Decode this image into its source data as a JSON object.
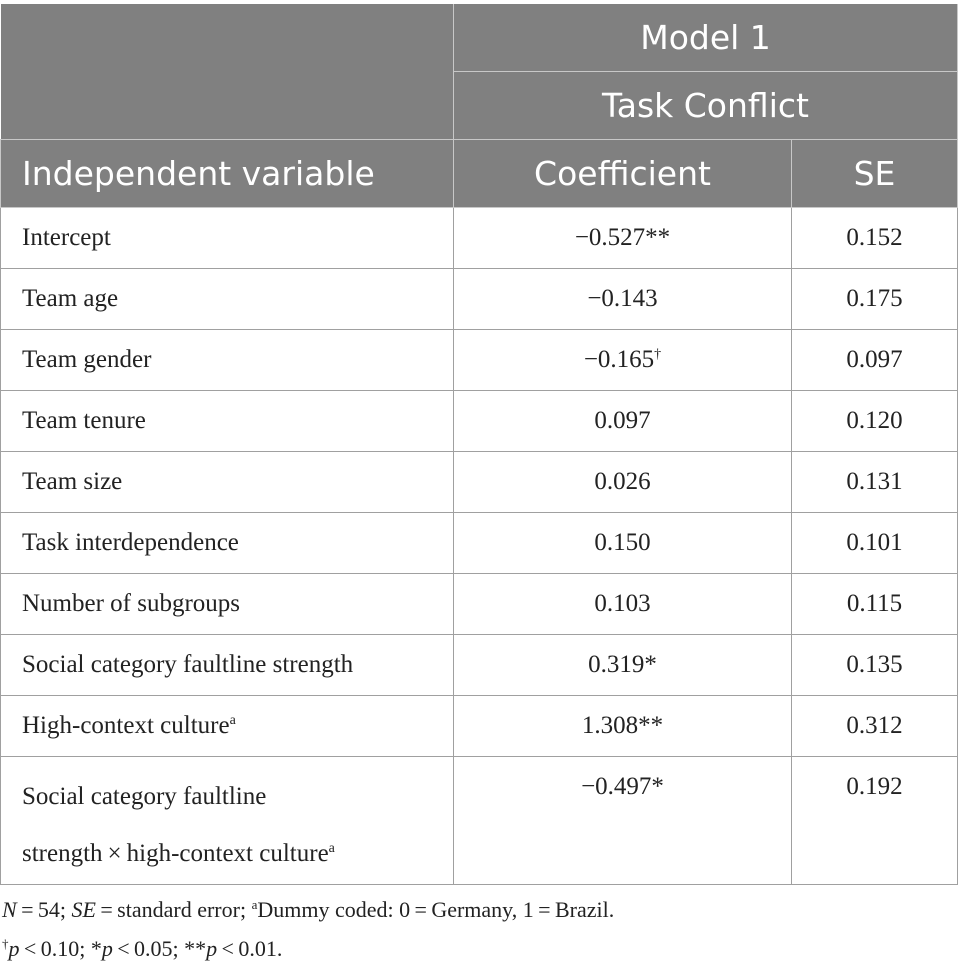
{
  "header": {
    "model": "Model 1",
    "dependent": "Task Conflict",
    "col_variable": "Independent variable",
    "col_coefficient": "Coefficient",
    "col_se": "SE"
  },
  "rows": [
    {
      "variable": "Intercept",
      "sup": "",
      "coef": "−0.527",
      "coef_sig": "**",
      "se": "0.152"
    },
    {
      "variable": "Team age",
      "sup": "",
      "coef": "−0.143",
      "coef_sig": "",
      "se": "0.175"
    },
    {
      "variable": "Team gender",
      "sup": "",
      "coef": "−0.165",
      "coef_sig": "†",
      "se": "0.097"
    },
    {
      "variable": "Team tenure",
      "sup": "",
      "coef": "0.097",
      "coef_sig": "",
      "se": "0.120"
    },
    {
      "variable": "Team size",
      "sup": "",
      "coef": "0.026",
      "coef_sig": "",
      "se": "0.131"
    },
    {
      "variable": "Task interdependence",
      "sup": "",
      "coef": "0.150",
      "coef_sig": "",
      "se": "0.101"
    },
    {
      "variable": "Number of subgroups",
      "sup": "",
      "coef": "0.103",
      "coef_sig": "",
      "se": "0.115"
    },
    {
      "variable": "Social category faultline strength",
      "sup": "",
      "coef": "0.319*",
      "coef_sig": "",
      "se": "0.135"
    },
    {
      "variable": "High-context culture",
      "sup": "a",
      "coef": "1.308**",
      "coef_sig": "",
      "se": "0.312"
    }
  ],
  "last_row": {
    "line1": "Social category faultline",
    "line2": "strength × high-context culture",
    "sup": "a",
    "coef": "−0.497*",
    "se": "0.192"
  },
  "notes": {
    "n_label": "N",
    "n_value": " = 54; ",
    "se_label": "SE",
    "se_text": " = standard error; ",
    "dummy_sup": "a",
    "dummy_text": "Dummy coded: 0 = Germany, 1 = Brazil.",
    "p1_sup": "†",
    "p1_text": " < 0.10; *",
    "p2_text": " < 0.05; **",
    "p3_text": " < 0.01.",
    "p_label": "p"
  }
}
